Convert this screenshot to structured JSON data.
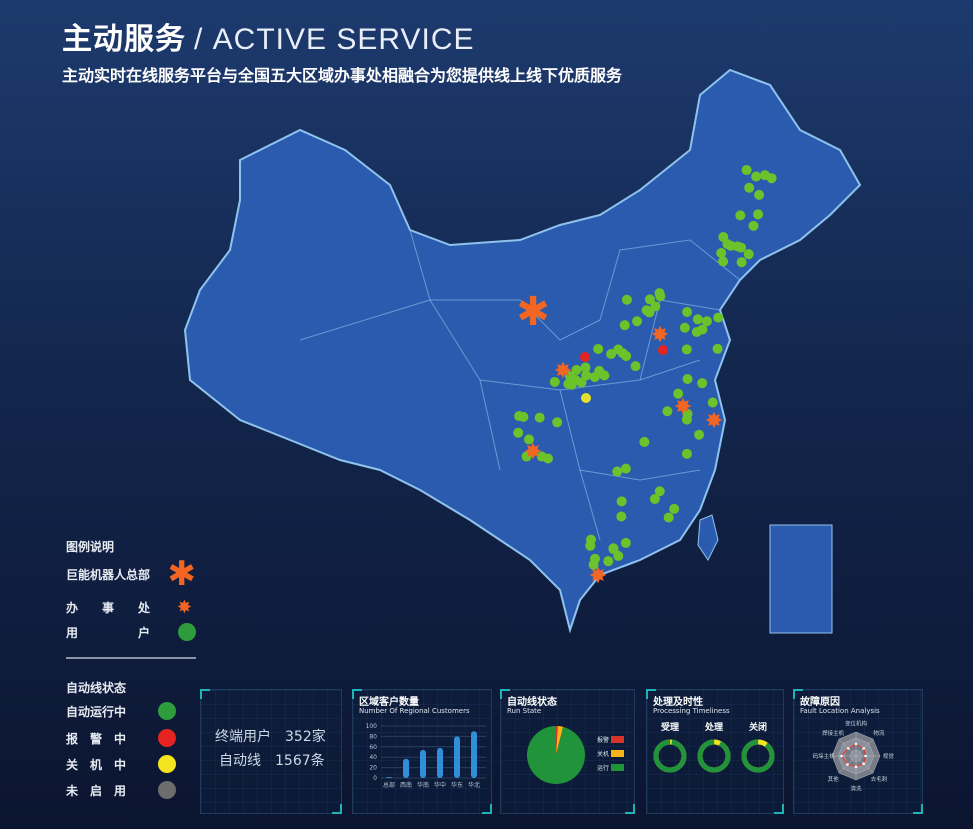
{
  "header": {
    "title": "主动服务",
    "title_en": "/ ACTIVE SERVICE",
    "subtitle": "主动实时在线服务平台与全国五大区域办事处相融合为您提供线上线下优质服务"
  },
  "legend": {
    "title": "图例说明",
    "items": [
      {
        "label": "巨能机器人总部",
        "icon": "asterisk-large",
        "color": "#f26522"
      },
      {
        "label": "办　　事　　处",
        "icon": "star-burst",
        "color": "#f26522"
      },
      {
        "label": "用　　　　　户",
        "icon": "circle",
        "color": "#2e9c3c"
      }
    ]
  },
  "status_legend": {
    "title": "自动线状态",
    "items": [
      {
        "label": "自动运行中",
        "color": "#2e9c3c"
      },
      {
        "label": "报　警　中",
        "color": "#e52421"
      },
      {
        "label": "关　机　中",
        "color": "#f2e421"
      },
      {
        "label": "未　启　用",
        "color": "#6d6d6d"
      }
    ]
  },
  "summary": {
    "terminal_label": "终端用户",
    "terminal_value": "352家",
    "line_label": "自动线",
    "line_value": "1567条"
  },
  "regional": {
    "title": "区域客户数量",
    "title_en": "Number Of Regional Customers",
    "chart_data": {
      "type": "bar",
      "categories": [
        "总部",
        "西南",
        "华南",
        "华中",
        "华东",
        "华北"
      ],
      "values": [
        2,
        37,
        54,
        58,
        80,
        90
      ],
      "ylim": [
        0,
        100
      ],
      "yticks": [
        0,
        20,
        40,
        60,
        80,
        100
      ],
      "color": "#2f8fd8"
    }
  },
  "run_state": {
    "title": "自动线状态",
    "title_en": "Run State",
    "chart_data": {
      "type": "pie",
      "labels": [
        "报警",
        "关机",
        "运行"
      ],
      "values": [
        1,
        3,
        96
      ],
      "colors": [
        "#d8342a",
        "#f6b418",
        "#21933a"
      ]
    }
  },
  "timeliness": {
    "title": "处理及时性",
    "title_en": "Processing Timeliness",
    "chart_data": {
      "type": "donut",
      "labels": [
        "受理",
        "处理",
        "关闭"
      ],
      "values": [
        98,
        93,
        90
      ],
      "colors": [
        "#21933a",
        "#f2e421"
      ]
    }
  },
  "fault": {
    "title": "故障原因",
    "title_en": "Fault Location Analysis",
    "chart_data": {
      "type": "radar",
      "labels": [
        "变位机构",
        "物流",
        "视觉",
        "去毛刺",
        "清洗",
        "其他",
        "码垛主机",
        "焊接主机"
      ],
      "values": [
        50,
        45,
        40,
        45,
        45,
        50,
        60,
        45
      ],
      "max": 100,
      "color": "#e0413a"
    }
  }
}
